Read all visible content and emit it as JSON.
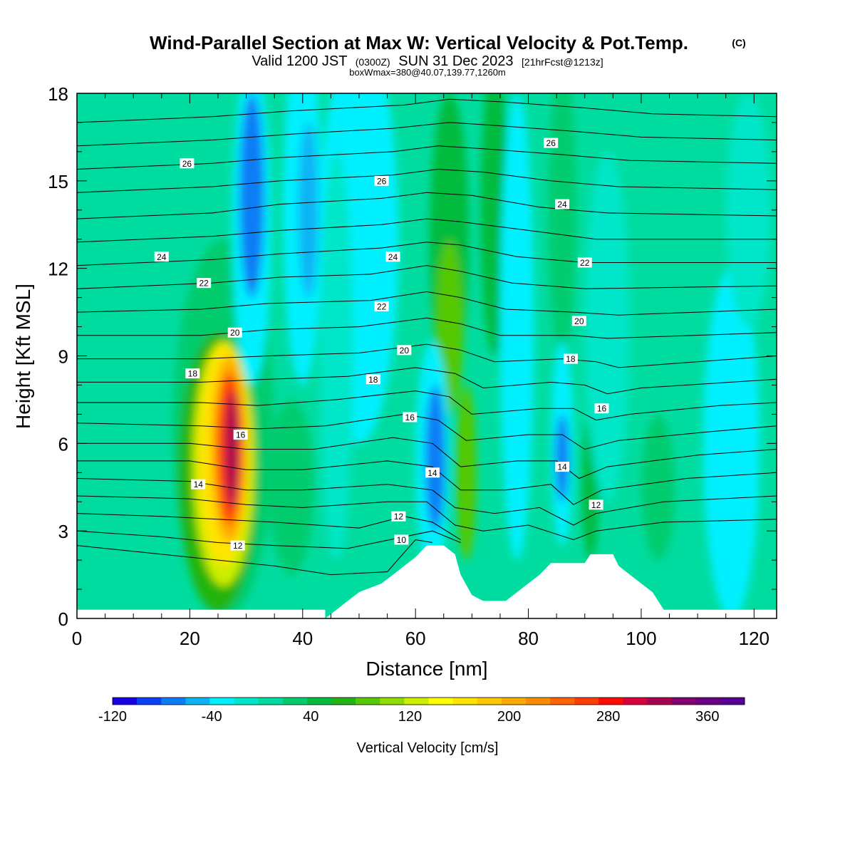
{
  "title": {
    "main": "Wind-Parallel Section at Max W: Vertical Velocity & Pot.Temp.",
    "copyright": "(C)",
    "valid_prefix": "Valid 1200 JST",
    "valid_z": "(0300Z)",
    "valid_date": "SUN 31 Dec 2023",
    "fcst": "[21hrFcst@1213z]",
    "boxline": "boxWmax=380@40.07,139.77,1260m"
  },
  "chart_data": {
    "type": "heatmap",
    "xlabel": "Distance [nm]",
    "ylabel": "Height [Kft MSL]",
    "xlim": [
      0,
      124
    ],
    "ylim": [
      0,
      18
    ],
    "x_ticks": [
      0,
      20,
      40,
      60,
      80,
      100,
      120
    ],
    "y_ticks": [
      0,
      3,
      6,
      9,
      12,
      15,
      18
    ],
    "colorbar": {
      "label": "Vertical Velocity [cm/s]",
      "min": -120,
      "max": 390,
      "step": 20,
      "tick_values": [
        -120,
        -40,
        40,
        120,
        200,
        280,
        360
      ],
      "colors": [
        "#1600e6",
        "#0b3ff5",
        "#0a7cf5",
        "#08b4f5",
        "#00f0ff",
        "#00e6c8",
        "#00dca0",
        "#00cc6e",
        "#00bb3c",
        "#22b411",
        "#54c800",
        "#90dc00",
        "#ccee00",
        "#ffff00",
        "#ffe400",
        "#ffc800",
        "#ffaa00",
        "#ff8c00",
        "#ff6400",
        "#ff3c00",
        "#ff0a00",
        "#d7003c",
        "#aa0050",
        "#82006e",
        "#6a0082",
        "#560096"
      ]
    },
    "terrain": [
      [
        44,
        0
      ],
      [
        46,
        0.3
      ],
      [
        48,
        0.6
      ],
      [
        50,
        0.9
      ],
      [
        54,
        1.2
      ],
      [
        56,
        1.5
      ],
      [
        58,
        1.8
      ],
      [
        60,
        2.1
      ],
      [
        62,
        2.5
      ],
      [
        65,
        2.5
      ],
      [
        67,
        2.2
      ],
      [
        68,
        1.5
      ],
      [
        70,
        0.8
      ],
      [
        72,
        0.6
      ],
      [
        76,
        0.6
      ],
      [
        78,
        0.9
      ],
      [
        80,
        1.2
      ],
      [
        82,
        1.5
      ],
      [
        84,
        1.9
      ],
      [
        88,
        1.9
      ],
      [
        90,
        1.9
      ],
      [
        91,
        2.2
      ],
      [
        95,
        2.2
      ],
      [
        96,
        1.8
      ],
      [
        98,
        1.5
      ],
      [
        100,
        1.2
      ],
      [
        102,
        0.9
      ],
      [
        103,
        0.6
      ],
      [
        104,
        0.3
      ],
      [
        124,
        0.3
      ]
    ],
    "theta_label_values": [
      10,
      12,
      12,
      12,
      14,
      14,
      14,
      16,
      16,
      16,
      18,
      18,
      18,
      20,
      20,
      20,
      22,
      22,
      22,
      24,
      24,
      24,
      26,
      26,
      26
    ],
    "isentropes": [
      {
        "points": [
          [
            0,
            2.5
          ],
          [
            15,
            2.2
          ],
          [
            25,
            2.0
          ],
          [
            35,
            1.8
          ],
          [
            45,
            1.5
          ],
          [
            55,
            1.6
          ],
          [
            60,
            2.7
          ],
          [
            63,
            2.6
          ]
        ]
      },
      {
        "points": [
          [
            0,
            3.0
          ],
          [
            15,
            2.8
          ],
          [
            25,
            2.6
          ],
          [
            35,
            2.5
          ],
          [
            48,
            2.4
          ],
          [
            58,
            2.8
          ],
          [
            63,
            3.0
          ],
          [
            68,
            2.6
          ]
        ]
      },
      {
        "points": [
          [
            0,
            3.6
          ],
          [
            15,
            3.5
          ],
          [
            25,
            3.4
          ],
          [
            35,
            3.3
          ],
          [
            50,
            3.1
          ],
          [
            58,
            3.5
          ],
          [
            63,
            3.3
          ],
          [
            68,
            2.7
          ]
        ]
      },
      {
        "points": [
          [
            0,
            4.2
          ],
          [
            20,
            4.1
          ],
          [
            30,
            3.9
          ],
          [
            40,
            3.8
          ],
          [
            55,
            4.0
          ],
          [
            62,
            4.0
          ],
          [
            67,
            3.2
          ],
          [
            72,
            3.0
          ],
          [
            80,
            3.2
          ],
          [
            88,
            2.7
          ],
          [
            92,
            3.0
          ],
          [
            104,
            3.3
          ],
          [
            124,
            3.4
          ]
        ]
      },
      {
        "points": [
          [
            0,
            4.8
          ],
          [
            20,
            4.7
          ],
          [
            30,
            4.4
          ],
          [
            40,
            4.4
          ],
          [
            55,
            4.6
          ],
          [
            63,
            4.4
          ],
          [
            67,
            3.8
          ],
          [
            74,
            3.6
          ],
          [
            82,
            3.8
          ],
          [
            88,
            3.2
          ],
          [
            92,
            3.6
          ],
          [
            104,
            4.0
          ],
          [
            124,
            4.2
          ]
        ]
      },
      {
        "points": [
          [
            0,
            5.4
          ],
          [
            20,
            5.4
          ],
          [
            30,
            5.1
          ],
          [
            40,
            5.1
          ],
          [
            55,
            5.4
          ],
          [
            63,
            5.2
          ],
          [
            68,
            4.4
          ],
          [
            76,
            4.4
          ],
          [
            84,
            4.6
          ],
          [
            88,
            3.9
          ],
          [
            93,
            4.4
          ],
          [
            108,
            4.8
          ],
          [
            124,
            5.0
          ]
        ]
      },
      {
        "points": [
          [
            0,
            6.0
          ],
          [
            20,
            6.0
          ],
          [
            30,
            5.8
          ],
          [
            42,
            5.8
          ],
          [
            56,
            6.2
          ],
          [
            63,
            6.0
          ],
          [
            68,
            5.2
          ],
          [
            78,
            5.4
          ],
          [
            85,
            5.4
          ],
          [
            89,
            4.8
          ],
          [
            94,
            5.2
          ],
          [
            110,
            5.6
          ],
          [
            124,
            5.8
          ]
        ]
      },
      {
        "points": [
          [
            0,
            6.7
          ],
          [
            22,
            6.6
          ],
          [
            32,
            6.5
          ],
          [
            44,
            6.6
          ],
          [
            58,
            7.0
          ],
          [
            64,
            6.8
          ],
          [
            69,
            6.1
          ],
          [
            80,
            6.3
          ],
          [
            86,
            6.3
          ],
          [
            90,
            5.8
          ],
          [
            96,
            6.1
          ],
          [
            112,
            6.4
          ],
          [
            124,
            6.6
          ]
        ]
      },
      {
        "points": [
          [
            0,
            7.4
          ],
          [
            22,
            7.4
          ],
          [
            32,
            7.3
          ],
          [
            46,
            7.5
          ],
          [
            60,
            7.8
          ],
          [
            66,
            7.6
          ],
          [
            70,
            7.0
          ],
          [
            82,
            7.2
          ],
          [
            88,
            7.2
          ],
          [
            92,
            6.8
          ],
          [
            98,
            7.0
          ],
          [
            114,
            7.3
          ],
          [
            124,
            7.4
          ]
        ]
      },
      {
        "points": [
          [
            0,
            8.1
          ],
          [
            22,
            8.1
          ],
          [
            34,
            8.2
          ],
          [
            48,
            8.3
          ],
          [
            60,
            8.6
          ],
          [
            67,
            8.4
          ],
          [
            72,
            7.9
          ],
          [
            84,
            8.1
          ],
          [
            90,
            8.0
          ],
          [
            94,
            7.7
          ],
          [
            100,
            7.9
          ],
          [
            124,
            8.2
          ]
        ]
      },
      {
        "points": [
          [
            0,
            8.9
          ],
          [
            22,
            8.9
          ],
          [
            34,
            9.0
          ],
          [
            50,
            9.1
          ],
          [
            62,
            9.4
          ],
          [
            68,
            9.2
          ],
          [
            74,
            8.8
          ],
          [
            86,
            8.9
          ],
          [
            92,
            8.8
          ],
          [
            96,
            8.6
          ],
          [
            124,
            9.0
          ]
        ]
      },
      {
        "points": [
          [
            0,
            9.7
          ],
          [
            22,
            9.7
          ],
          [
            34,
            9.9
          ],
          [
            50,
            10.0
          ],
          [
            62,
            10.3
          ],
          [
            68,
            10.1
          ],
          [
            75,
            9.7
          ],
          [
            88,
            9.7
          ],
          [
            94,
            9.6
          ],
          [
            124,
            9.8
          ]
        ]
      },
      {
        "points": [
          [
            0,
            10.5
          ],
          [
            22,
            10.6
          ],
          [
            34,
            10.8
          ],
          [
            52,
            10.9
          ],
          [
            62,
            11.2
          ],
          [
            68,
            11.0
          ],
          [
            76,
            10.6
          ],
          [
            88,
            10.5
          ],
          [
            96,
            10.4
          ],
          [
            124,
            10.6
          ]
        ]
      },
      {
        "points": [
          [
            0,
            11.3
          ],
          [
            24,
            11.5
          ],
          [
            36,
            11.7
          ],
          [
            52,
            11.8
          ],
          [
            62,
            12.1
          ],
          [
            68,
            11.9
          ],
          [
            77,
            11.5
          ],
          [
            90,
            11.3
          ],
          [
            124,
            11.4
          ]
        ]
      },
      {
        "points": [
          [
            0,
            12.1
          ],
          [
            24,
            12.3
          ],
          [
            36,
            12.5
          ],
          [
            54,
            12.7
          ],
          [
            62,
            12.9
          ],
          [
            68,
            12.8
          ],
          [
            78,
            12.4
          ],
          [
            90,
            12.2
          ],
          [
            124,
            12.2
          ]
        ]
      },
      {
        "points": [
          [
            0,
            12.9
          ],
          [
            24,
            13.1
          ],
          [
            36,
            13.3
          ],
          [
            54,
            13.5
          ],
          [
            62,
            13.7
          ],
          [
            68,
            13.6
          ],
          [
            80,
            13.3
          ],
          [
            92,
            13.0
          ],
          [
            124,
            13.0
          ]
        ]
      },
      {
        "points": [
          [
            0,
            13.7
          ],
          [
            24,
            13.9
          ],
          [
            36,
            14.2
          ],
          [
            54,
            14.4
          ],
          [
            62,
            14.6
          ],
          [
            70,
            14.5
          ],
          [
            82,
            14.1
          ],
          [
            94,
            13.9
          ],
          [
            124,
            13.8
          ]
        ]
      },
      {
        "points": [
          [
            0,
            14.6
          ],
          [
            24,
            14.8
          ],
          [
            36,
            15.0
          ],
          [
            56,
            15.2
          ],
          [
            64,
            15.4
          ],
          [
            72,
            15.3
          ],
          [
            84,
            15.0
          ],
          [
            96,
            14.8
          ],
          [
            124,
            14.7
          ]
        ]
      },
      {
        "points": [
          [
            0,
            15.4
          ],
          [
            24,
            15.6
          ],
          [
            36,
            15.8
          ],
          [
            56,
            16.0
          ],
          [
            64,
            16.2
          ],
          [
            72,
            16.1
          ],
          [
            86,
            15.9
          ],
          [
            98,
            15.7
          ],
          [
            124,
            15.6
          ]
        ]
      },
      {
        "points": [
          [
            0,
            16.2
          ],
          [
            24,
            16.4
          ],
          [
            38,
            16.6
          ],
          [
            56,
            16.8
          ],
          [
            66,
            17.0
          ],
          [
            74,
            16.9
          ],
          [
            88,
            16.7
          ],
          [
            100,
            16.5
          ],
          [
            124,
            16.4
          ]
        ]
      },
      {
        "points": [
          [
            0,
            17.0
          ],
          [
            24,
            17.2
          ],
          [
            38,
            17.4
          ],
          [
            58,
            17.6
          ],
          [
            66,
            17.8
          ],
          [
            76,
            17.7
          ],
          [
            90,
            17.5
          ],
          [
            102,
            17.3
          ],
          [
            124,
            17.2
          ]
        ]
      }
    ]
  }
}
